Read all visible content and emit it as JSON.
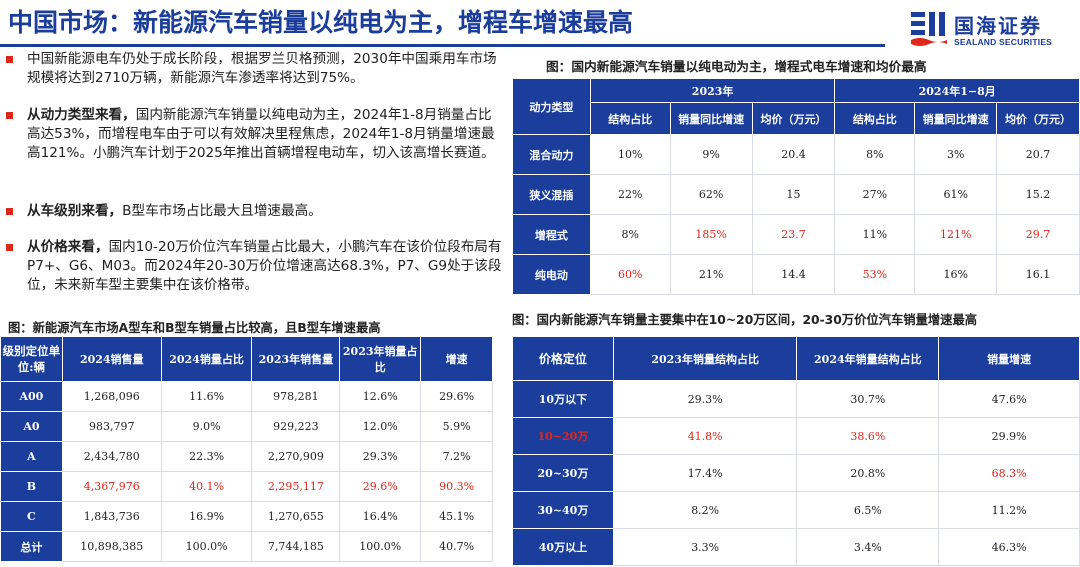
{
  "title": "中国市场：新能源汽车销量以纯电为主，增程车增速最高",
  "logo": {
    "cn": "国海证券",
    "en": "SEALAND SECURITIES",
    "mark": "sealand-logo-icon"
  },
  "colors": {
    "brand": "#1b3d9b",
    "accent": "#e0271b"
  },
  "bullets": [
    {
      "bold": "",
      "text": "中国新能源电车仍处于成长阶段，根据罗兰贝格预测，2030年中国乘用车市场规模将达到2710万辆，新能源汽车渗透率将达到75%。"
    },
    {
      "bold": "从动力类型来看，",
      "text": "国内新能源汽车销量以纯电动为主，2024年1-8月销量占比高达53%，而增程电车由于可以有效解决里程焦虑，2024年1-8月销量增速最高121%。小鹏汽车计划于2025年推出首辆增程电动车，切入该高增长赛道。"
    },
    {
      "bold": "从车级别来看，",
      "text": "B型车市场占比最大且增速最高。"
    },
    {
      "bold": "从价格来看，",
      "text": "国内10-20万价位汽车销量占比最大，小鹏汽车在该价位段布局有P7+、G6、M03。而2024年20-30万价位增速高达68.3%，P7、G9处于该段位，未来新车型主要集中在该价格带。"
    }
  ],
  "table1": {
    "caption": "图：新能源汽车市场A型车和B型车销量占比较高，且B型车增速最高",
    "headers": [
      "级别定位单位:辆",
      "2024销售量",
      "2024销量占比",
      "2023年销售量",
      "2023年销量占比",
      "增速"
    ],
    "rows": [
      {
        "label": "A00",
        "cells": [
          "1,268,096",
          "11.6%",
          "978,281",
          "12.6%",
          "29.6%"
        ]
      },
      {
        "label": "A0",
        "cells": [
          "983,797",
          "9.0%",
          "929,223",
          "12.0%",
          "5.9%"
        ]
      },
      {
        "label": "A",
        "cells": [
          "2,434,780",
          "22.3%",
          "2,270,909",
          "29.3%",
          "7.2%"
        ]
      },
      {
        "label": "B",
        "cells": [
          "4,367,976",
          "40.1%",
          "2,295,117",
          "29.6%",
          "90.3%"
        ]
      },
      {
        "label": "C",
        "cells": [
          "1,843,736",
          "16.9%",
          "1,270,655",
          "16.4%",
          "45.1%"
        ]
      },
      {
        "label": "总计",
        "cells": [
          "10,898,385",
          "100.0%",
          "7,744,185",
          "100.0%",
          "40.7%"
        ]
      }
    ]
  },
  "table2": {
    "caption": "图：国内新能源汽车销量以纯电动为主，增程式电车增速和均价最高",
    "corner": "动力类型",
    "groups": [
      "2023年",
      "2024年1−8月"
    ],
    "subheaders": [
      "结构占比",
      "销量同比增速",
      "均价（万元）",
      "结构占比",
      "销量同比增速",
      "均价（万元）"
    ],
    "rows": [
      {
        "label": "混合动力",
        "cells": [
          "10%",
          "9%",
          "20.4",
          "8%",
          "3%",
          "20.7"
        ]
      },
      {
        "label": "狭义混插",
        "cells": [
          "22%",
          "62%",
          "15",
          "27%",
          "61%",
          "15.2"
        ]
      },
      {
        "label": "增程式",
        "cells": [
          "8%",
          "185%",
          "23.7",
          "11%",
          "121%",
          "29.7"
        ]
      },
      {
        "label": "纯电动",
        "cells": [
          "60%",
          "21%",
          "14.4",
          "53%",
          "16%",
          "16.1"
        ]
      }
    ]
  },
  "table3": {
    "caption": "图：国内新能源汽车销量主要集中在10~20万区间，20-30万价位汽车销量增速最高",
    "headers": [
      "价格定位",
      "2023年销量结构占比",
      "2024年销量结构占比",
      "销量增速"
    ],
    "rows": [
      {
        "label": "10万以下",
        "cells": [
          "29.3%",
          "30.7%",
          "47.6%"
        ]
      },
      {
        "label": "10~20万",
        "cells": [
          "41.8%",
          "38.6%",
          "29.9%"
        ]
      },
      {
        "label": "20~30万",
        "cells": [
          "17.4%",
          "20.8%",
          "68.3%"
        ]
      },
      {
        "label": "30~40万",
        "cells": [
          "8.2%",
          "6.5%",
          "11.2%"
        ]
      },
      {
        "label": "40万以上",
        "cells": [
          "3.3%",
          "3.4%",
          "46.3%"
        ]
      }
    ]
  }
}
